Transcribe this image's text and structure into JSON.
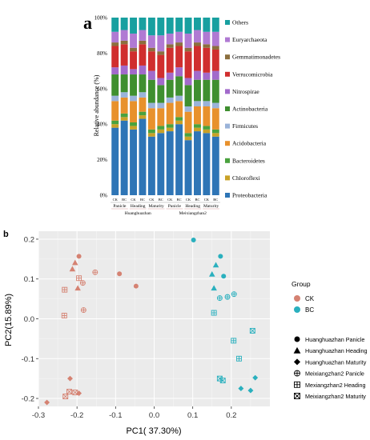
{
  "chart_data": [
    {
      "panel_label": "a",
      "type": "stacked-bar",
      "ylabel": "Relative abundance (%)",
      "ylim": [
        0,
        100
      ],
      "yticks": [
        "0%",
        "20%",
        "40%",
        "60%",
        "80%",
        "100%"
      ],
      "categories": [
        "CK",
        "BC",
        "CK",
        "BC",
        "CK",
        "BC",
        "CK",
        "BC",
        "CK",
        "BC",
        "CK",
        "BC"
      ],
      "stage_labels": [
        "Panicle",
        "Heading",
        "Maturity",
        "Panicle",
        "Heading",
        "Maturity"
      ],
      "variety_labels": [
        "Huanghuazhan",
        "Meixiangzhan2"
      ],
      "legend_position": "right",
      "series": [
        {
          "name": "Proteobacteria",
          "color": "#2e75b6",
          "values": [
            38,
            42,
            37,
            43,
            33,
            35,
            36,
            40,
            31,
            36,
            35,
            33
          ]
        },
        {
          "name": "Chloroflexi",
          "color": "#c9a227",
          "values": [
            2,
            2,
            2,
            2,
            2,
            2,
            2,
            2,
            2,
            2,
            2,
            2
          ]
        },
        {
          "name": "Bacteroidetes",
          "color": "#4aa23e",
          "values": [
            2,
            2,
            2,
            2,
            2,
            2,
            2,
            2,
            2,
            2,
            2,
            2
          ]
        },
        {
          "name": "Acidobacteria",
          "color": "#e8912c",
          "values": [
            11,
            9,
            12,
            8,
            12,
            10,
            12,
            9,
            12,
            10,
            11,
            12
          ]
        },
        {
          "name": "Firmicutes",
          "color": "#9ab3d9",
          "values": [
            3,
            3,
            3,
            3,
            3,
            3,
            3,
            3,
            3,
            3,
            3,
            3
          ]
        },
        {
          "name": "Actinobacteria",
          "color": "#3f8f2f",
          "values": [
            12,
            10,
            12,
            10,
            13,
            10,
            10,
            11,
            12,
            12,
            12,
            13
          ]
        },
        {
          "name": "Nitrospirae",
          "color": "#a26acb",
          "values": [
            4,
            5,
            3,
            5,
            5,
            4,
            4,
            5,
            4,
            5,
            4,
            5
          ]
        },
        {
          "name": "Verrucomicrobia",
          "color": "#d02e2e",
          "values": [
            12,
            12,
            10,
            12,
            11,
            13,
            14,
            12,
            15,
            14,
            14,
            12
          ]
        },
        {
          "name": "Gemmatimonadetes",
          "color": "#8c6f3e",
          "values": [
            2,
            2,
            2,
            2,
            2,
            2,
            2,
            2,
            2,
            2,
            2,
            2
          ]
        },
        {
          "name": "Euryarchaeota",
          "color": "#b07ad3",
          "values": [
            6,
            6,
            8,
            6,
            7,
            9,
            6,
            6,
            8,
            7,
            7,
            8
          ]
        },
        {
          "name": "Others",
          "color": "#18a0a0",
          "values": [
            8,
            7,
            9,
            7,
            10,
            10,
            9,
            8,
            9,
            7,
            8,
            8
          ]
        }
      ]
    },
    {
      "panel_label": "b",
      "type": "scatter",
      "xlabel": "PC1( 37.30%)",
      "ylabel": "PC2(15.89%)",
      "xlim": [
        -0.3,
        0.3
      ],
      "ylim": [
        -0.22,
        0.22
      ],
      "xticks": [
        -0.3,
        -0.2,
        -0.1,
        0.0,
        0.1,
        0.2
      ],
      "xtick_labels": [
        "-0.3",
        "-0.2",
        "-0.1",
        "0.0",
        "0.1",
        "0.2"
      ],
      "yticks": [
        0.2,
        0.1,
        0.0,
        -0.1,
        -0.2
      ],
      "ytick_labels": [
        "0.2",
        "0.1",
        "0.0",
        "-0.1",
        "-0.2"
      ],
      "grid": true,
      "legend_group_title": "Group",
      "groups": [
        {
          "name": "CK",
          "color": "#d58272"
        },
        {
          "name": "BC",
          "color": "#2ab0be"
        }
      ],
      "shape_legend": [
        {
          "name": "Huanghuazhan Panicle",
          "shape": "circle"
        },
        {
          "name": "Huanghuazhan Heading",
          "shape": "triangle"
        },
        {
          "name": "Huanghuazhan Maturity",
          "shape": "diamond"
        },
        {
          "name": "Meixiangzhan2 Panicle",
          "shape": "circle-plus"
        },
        {
          "name": "Mexiangzhan2 Heading",
          "shape": "square-plus"
        },
        {
          "name": "Meixiangzhan2 Maturity",
          "shape": "square-x"
        }
      ],
      "points": [
        {
          "group": "CK",
          "shape": "circle",
          "x": -0.195,
          "y": 0.157
        },
        {
          "group": "CK",
          "shape": "circle",
          "x": -0.09,
          "y": 0.113
        },
        {
          "group": "CK",
          "shape": "circle",
          "x": -0.047,
          "y": 0.082
        },
        {
          "group": "CK",
          "shape": "triangle",
          "x": -0.205,
          "y": 0.141
        },
        {
          "group": "CK",
          "shape": "triangle",
          "x": -0.212,
          "y": 0.125
        },
        {
          "group": "CK",
          "shape": "triangle",
          "x": -0.198,
          "y": 0.077
        },
        {
          "group": "CK",
          "shape": "diamond",
          "x": -0.218,
          "y": -0.15
        },
        {
          "group": "CK",
          "shape": "diamond",
          "x": -0.195,
          "y": -0.187
        },
        {
          "group": "CK",
          "shape": "diamond",
          "x": -0.278,
          "y": -0.21
        },
        {
          "group": "CK",
          "shape": "circle-plus",
          "x": -0.153,
          "y": 0.117
        },
        {
          "group": "CK",
          "shape": "circle-plus",
          "x": -0.185,
          "y": 0.09
        },
        {
          "group": "CK",
          "shape": "circle-plus",
          "x": -0.183,
          "y": 0.022
        },
        {
          "group": "CK",
          "shape": "square-plus",
          "x": -0.195,
          "y": 0.102
        },
        {
          "group": "CK",
          "shape": "square-plus",
          "x": -0.232,
          "y": 0.073
        },
        {
          "group": "CK",
          "shape": "square-plus",
          "x": -0.233,
          "y": 0.008
        },
        {
          "group": "CK",
          "shape": "square-x",
          "x": -0.23,
          "y": -0.195
        },
        {
          "group": "CK",
          "shape": "square-x",
          "x": -0.22,
          "y": -0.183
        },
        {
          "group": "CK",
          "shape": "square-x",
          "x": -0.205,
          "y": -0.185
        },
        {
          "group": "BC",
          "shape": "circle",
          "x": 0.102,
          "y": 0.198
        },
        {
          "group": "BC",
          "shape": "circle",
          "x": 0.172,
          "y": 0.157
        },
        {
          "group": "BC",
          "shape": "circle",
          "x": 0.18,
          "y": 0.107
        },
        {
          "group": "BC",
          "shape": "triangle",
          "x": 0.16,
          "y": 0.135
        },
        {
          "group": "BC",
          "shape": "triangle",
          "x": 0.15,
          "y": 0.112
        },
        {
          "group": "BC",
          "shape": "triangle",
          "x": 0.155,
          "y": 0.077
        },
        {
          "group": "BC",
          "shape": "diamond",
          "x": 0.262,
          "y": -0.148
        },
        {
          "group": "BC",
          "shape": "diamond",
          "x": 0.225,
          "y": -0.175
        },
        {
          "group": "BC",
          "shape": "diamond",
          "x": 0.25,
          "y": -0.18
        },
        {
          "group": "BC",
          "shape": "circle-plus",
          "x": 0.17,
          "y": 0.052
        },
        {
          "group": "BC",
          "shape": "circle-plus",
          "x": 0.19,
          "y": 0.055
        },
        {
          "group": "BC",
          "shape": "circle-plus",
          "x": 0.207,
          "y": 0.062
        },
        {
          "group": "BC",
          "shape": "square-plus",
          "x": 0.155,
          "y": 0.015
        },
        {
          "group": "BC",
          "shape": "square-plus",
          "x": 0.206,
          "y": -0.055
        },
        {
          "group": "BC",
          "shape": "square-plus",
          "x": 0.22,
          "y": -0.1
        },
        {
          "group": "BC",
          "shape": "square-x",
          "x": 0.255,
          "y": -0.03
        },
        {
          "group": "BC",
          "shape": "square-x",
          "x": 0.17,
          "y": -0.15
        },
        {
          "group": "BC",
          "shape": "square-x",
          "x": 0.178,
          "y": -0.155
        }
      ]
    }
  ]
}
